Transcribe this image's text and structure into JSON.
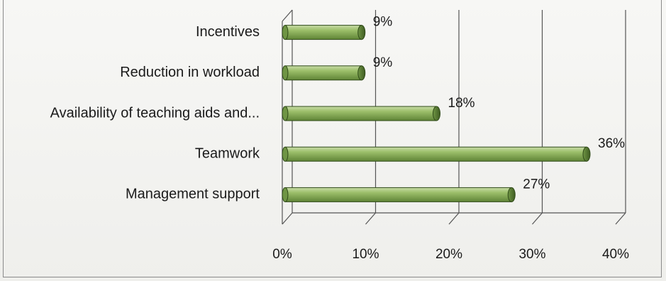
{
  "chart_data": {
    "type": "bar",
    "orientation": "horizontal",
    "categories": [
      "Incentives",
      "Reduction in workload",
      "Availability of teaching aids and...",
      "Teamwork",
      "Management support"
    ],
    "values": [
      9,
      9,
      18,
      36,
      27
    ],
    "value_labels": [
      "9%",
      "9%",
      "18%",
      "36%",
      "27%"
    ],
    "xlim": [
      0,
      40
    ],
    "x_ticks": [
      "0%",
      "10%",
      "20%",
      "30%",
      "40%"
    ],
    "grid": true,
    "bar_color": "#7da24e",
    "title": "",
    "xlabel": "",
    "ylabel": ""
  }
}
